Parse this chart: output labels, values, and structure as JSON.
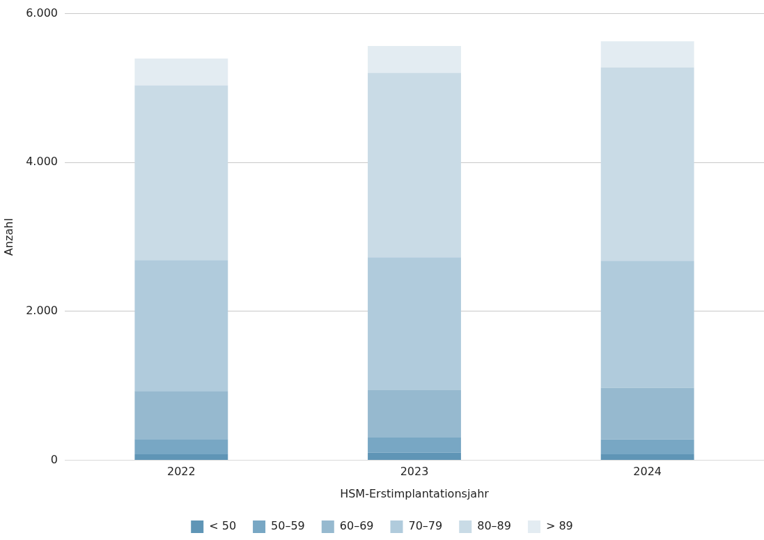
{
  "chart_data": {
    "type": "bar",
    "stacked": true,
    "xlabel": "HSM-Erstimplantationsjahr",
    "ylabel": "Anzahl",
    "categories": [
      "2022",
      "2023",
      "2024"
    ],
    "series": [
      {
        "name": "< 50",
        "color": "#5f95b6",
        "values": [
          81,
          101,
          81
        ]
      },
      {
        "name": "50–59",
        "color": "#78a7c4",
        "values": [
          203,
          203,
          198
        ]
      },
      {
        "name": "60–69",
        "color": "#96b9cf",
        "values": [
          647,
          637,
          696
        ]
      },
      {
        "name": "70–79",
        "color": "#b0cbdc",
        "values": [
          1759,
          1785,
          1706
        ]
      },
      {
        "name": "80–89",
        "color": "#c9dbe6",
        "values": [
          2346,
          2479,
          2597
        ]
      },
      {
        "name": "> 89",
        "color": "#e3ecf2",
        "values": [
          361,
          360,
          352
        ]
      }
    ],
    "ylim": [
      0,
      6000
    ],
    "yticks": [
      {
        "value": 0,
        "label": "0"
      },
      {
        "value": 2000,
        "label": "2.000"
      },
      {
        "value": 4000,
        "label": "4.000"
      },
      {
        "value": 6000,
        "label": "6.000"
      }
    ],
    "grid": "y",
    "legend": "bottom"
  }
}
